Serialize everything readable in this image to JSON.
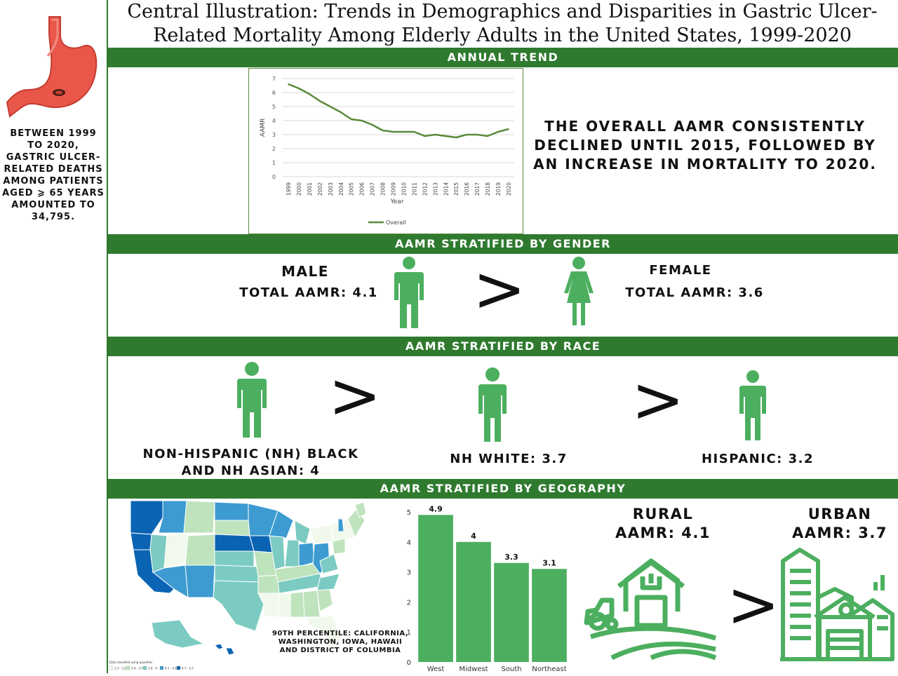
{
  "title": "Central Illustration: Trends in Demographics and Disparities in Gastric Ulcer-Related Mortality Among Elderly Adults in the United States, 1999-2020",
  "sidebar_text": "BETWEEN 1999 TO 2020, GASTRIC ULCER-RELATED DEATHS AMONG PATIENTS AGED ⩾ 65 YEARS AMOUNTED TO 34,795.",
  "sections": {
    "annual": "ANNUAL TREND",
    "gender": "AAMR STRATIFIED BY GENDER",
    "race": "AAMR STRATIFIED BY RACE",
    "geo": "AAMR STRATIFIED BY GEOGRAPHY"
  },
  "trend_statement": "THE OVERALL AAMR CONSISTENTLY DECLINED UNTIL 2015, FOLLOWED BY AN INCREASE IN MORTALITY TO 2020.",
  "gender": {
    "male_label": "MALE",
    "male_value": "TOTAL AAMR: 4.1",
    "female_label": "FEMALE",
    "female_value": "TOTAL AAMR: 3.6",
    "comparator": ">"
  },
  "race": {
    "group1_line1": "NON-HISPANIC (NH) BLACK",
    "group1_line2": "AND NH ASIAN: 4",
    "group2": "NH WHITE: 3.7",
    "group3": "HISPANIC: 3.2",
    "comparator": ">"
  },
  "geography": {
    "map_note_line1": "90TH PERCENTILE: CALIFORNIA,",
    "map_note_line2": "WASHINGTON, IOWA, HAWAII",
    "map_note_line3": "AND DISTRICT OF COLUMBIA",
    "map_legend_title": "Data classified using quantiles",
    "map_legend": [
      "2.3 - 3.2",
      "3.4 - 3.7",
      "3.8 - 4",
      "4.1 - 4.5",
      "4.7 - 5.3"
    ],
    "map_colors": [
      "#f1f8ec",
      "#bfe3bd",
      "#7ccbc2",
      "#3d9bd1",
      "#0a64b3"
    ],
    "rural_line1": "RURAL",
    "rural_line2": "AAMR: 4.1",
    "urban_line1": "URBAN",
    "urban_line2": "AAMR: 3.7",
    "comparator": ">"
  },
  "colors": {
    "brand_green": "#2f7a2f",
    "icon_green": "#4caf5f",
    "line_green": "#5a8a3a"
  },
  "chart_data": [
    {
      "type": "line",
      "title": "",
      "xlabel": "Year",
      "ylabel": "AAMR",
      "ylim": [
        0,
        7
      ],
      "yticks": [
        0,
        1,
        2,
        3,
        4,
        5,
        6,
        7
      ],
      "x": [
        "1999",
        "2000",
        "2001",
        "2002",
        "2003",
        "2004",
        "2005",
        "2006",
        "2007",
        "2008",
        "2009",
        "2010",
        "2011",
        "2012",
        "2013",
        "2014",
        "2015",
        "2016",
        "2017",
        "2018",
        "2019",
        "2020"
      ],
      "series": [
        {
          "name": "Overall",
          "values": [
            6.6,
            6.3,
            5.9,
            5.4,
            5.0,
            4.6,
            4.1,
            4.0,
            3.7,
            3.3,
            3.2,
            3.2,
            3.2,
            2.9,
            3.0,
            2.9,
            2.8,
            3.0,
            3.0,
            2.9,
            3.2,
            3.4
          ]
        }
      ],
      "grid": true,
      "legend": "bottom"
    },
    {
      "type": "bar",
      "title": "",
      "categories": [
        "West",
        "Midwest",
        "South",
        "Northeast"
      ],
      "values": [
        4.9,
        4,
        3.3,
        3.1
      ],
      "value_labels": [
        "4.9",
        "4",
        "3.3",
        "3.1"
      ],
      "ylim": [
        0,
        5
      ],
      "yticks": [
        0,
        1,
        2,
        3,
        4,
        5
      ]
    }
  ]
}
